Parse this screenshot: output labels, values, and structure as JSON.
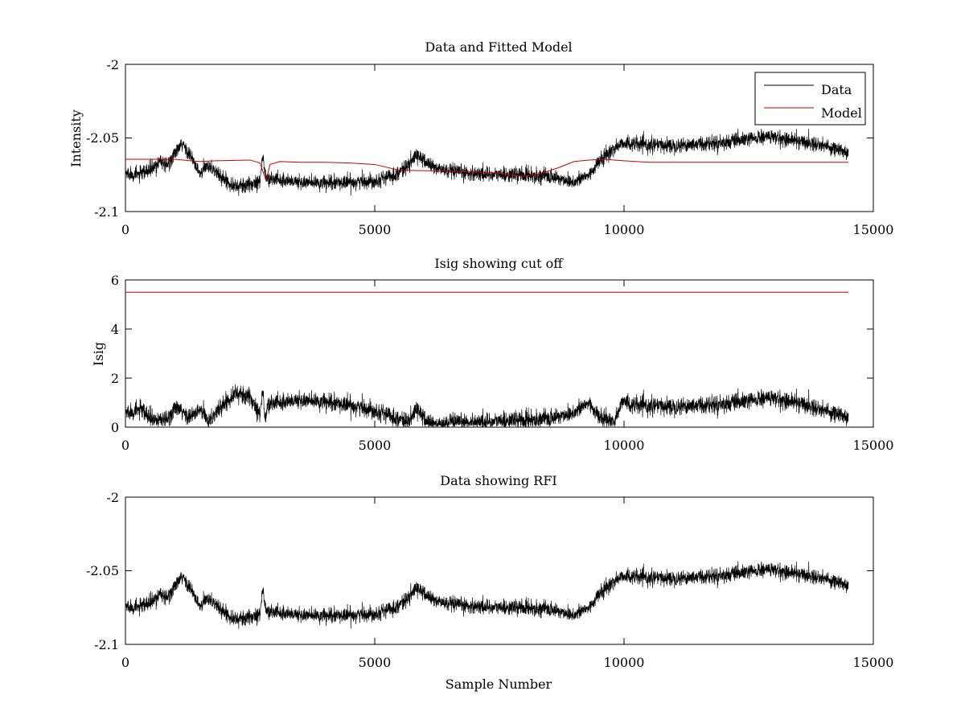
{
  "chart_data": [
    {
      "type": "line",
      "title": "Data and Fitted Model",
      "xlabel": "",
      "ylabel": "Intensity",
      "xlim": [
        0,
        15000
      ],
      "ylim": [
        -2.1,
        -2.0
      ],
      "xticks": [
        "0",
        "5000",
        "10000",
        "15000"
      ],
      "yticks": [
        "-2",
        "-2.05",
        "-2.1"
      ],
      "grid": false,
      "legend": {
        "position": "top-right",
        "entries": [
          "Data",
          "Model"
        ]
      },
      "series": [
        {
          "name": "Data",
          "color": "#000000",
          "noisy": true,
          "noise_amplitude": 0.005,
          "x": [
            0,
            300,
            600,
            700,
            800,
            1000,
            1150,
            1300,
            1500,
            1650,
            1750,
            1900,
            2200,
            2500,
            2700,
            2760,
            2800,
            2850,
            3000,
            3500,
            4000,
            4500,
            5000,
            5400,
            5700,
            5850,
            6000,
            6200,
            6500,
            7000,
            7500,
            8000,
            8500,
            9000,
            9300,
            9500,
            9800,
            10000,
            10100,
            10500,
            11000,
            11500,
            12000,
            12500,
            12900,
            13500,
            14000,
            14500
          ],
          "y": [
            -2.074,
            -2.075,
            -2.07,
            -2.064,
            -2.07,
            -2.06,
            -2.054,
            -2.062,
            -2.075,
            -2.068,
            -2.071,
            -2.076,
            -2.083,
            -2.082,
            -2.078,
            -2.062,
            -2.075,
            -2.078,
            -2.078,
            -2.08,
            -2.081,
            -2.08,
            -2.079,
            -2.075,
            -2.068,
            -2.061,
            -2.066,
            -2.07,
            -2.073,
            -2.074,
            -2.075,
            -2.075,
            -2.076,
            -2.08,
            -2.075,
            -2.066,
            -2.057,
            -2.053,
            -2.054,
            -2.055,
            -2.055,
            -2.054,
            -2.053,
            -2.051,
            -2.049,
            -2.052,
            -2.055,
            -2.06
          ]
        },
        {
          "name": "Model",
          "color": "#cc0000",
          "noisy": false,
          "x": [
            0,
            1000,
            1300,
            1500,
            1800,
            2500,
            2700,
            2780,
            2820,
            2900,
            3100,
            3500,
            4000,
            4500,
            5000,
            5500,
            6500,
            7500,
            8000,
            8300,
            8700,
            9000,
            9300,
            9600,
            10000,
            10500,
            12000,
            13500,
            14500
          ],
          "y": [
            -2.0645,
            -2.0645,
            -2.0655,
            -2.066,
            -2.0655,
            -2.065,
            -2.067,
            -2.075,
            -2.079,
            -2.068,
            -2.066,
            -2.0665,
            -2.0665,
            -2.067,
            -2.068,
            -2.072,
            -2.0725,
            -2.074,
            -2.076,
            -2.0745,
            -2.07,
            -2.066,
            -2.065,
            -2.0645,
            -2.0655,
            -2.0665,
            -2.0665,
            -2.0665,
            -2.0665
          ]
        }
      ]
    },
    {
      "type": "line",
      "title": "Isig showing cut off",
      "xlabel": "",
      "ylabel": "Isig",
      "xlim": [
        0,
        15000
      ],
      "ylim": [
        0,
        6
      ],
      "xticks": [
        "0",
        "5000",
        "10000",
        "15000"
      ],
      "yticks": [
        "6",
        "4",
        "2",
        "0"
      ],
      "grid": false,
      "series": [
        {
          "color": "#000000",
          "noisy": true,
          "noise_amplitude": 0.35,
          "abs": true,
          "x": [
            0,
            300,
            600,
            700,
            800,
            1000,
            1150,
            1300,
            1500,
            1650,
            1750,
            1900,
            2200,
            2500,
            2700,
            2760,
            2800,
            2850,
            3000,
            3500,
            4000,
            4500,
            5000,
            5400,
            5700,
            5850,
            6000,
            6200,
            6500,
            7000,
            7500,
            8000,
            8500,
            9000,
            9300,
            9500,
            9800,
            10000,
            10100,
            10500,
            11000,
            11500,
            12000,
            12500,
            12900,
            13500,
            14000,
            14500
          ],
          "y": [
            0.6,
            0.7,
            0.2,
            0.4,
            0.2,
            0.8,
            0.6,
            0.4,
            0.7,
            0.3,
            0.4,
            0.8,
            1.4,
            1.2,
            0.6,
            1.5,
            0.2,
            0.9,
            1.0,
            1.1,
            1.0,
            0.9,
            0.7,
            0.4,
            0.2,
            0.8,
            0.3,
            0.1,
            0.15,
            0.2,
            0.25,
            0.3,
            0.35,
            0.6,
            1.0,
            0.4,
            0.2,
            1.2,
            0.9,
            0.85,
            0.85,
            0.9,
            0.95,
            1.05,
            1.2,
            1.0,
            0.7,
            0.4
          ]
        },
        {
          "color": "#cc0000",
          "noisy": false,
          "x": [
            0,
            14500
          ],
          "y": [
            5.5,
            5.5
          ]
        }
      ]
    },
    {
      "type": "line",
      "title": "Data showing RFI",
      "xlabel": "Sample Number",
      "ylabel": "",
      "xlim": [
        0,
        15000
      ],
      "ylim": [
        -2.1,
        -2.0
      ],
      "xticks": [
        "0",
        "5000",
        "10000",
        "15000"
      ],
      "yticks": [
        "-2",
        "-2.05",
        "-2.1"
      ],
      "grid": false,
      "series": [
        {
          "color": "#000000",
          "noisy": true,
          "noise_amplitude": 0.005,
          "x": [
            0,
            300,
            600,
            700,
            800,
            1000,
            1150,
            1300,
            1500,
            1650,
            1750,
            1900,
            2200,
            2500,
            2700,
            2760,
            2800,
            2850,
            3000,
            3500,
            4000,
            4500,
            5000,
            5400,
            5700,
            5850,
            6000,
            6200,
            6500,
            7000,
            7500,
            8000,
            8500,
            9000,
            9300,
            9500,
            9800,
            10000,
            10100,
            10500,
            11000,
            11500,
            12000,
            12500,
            12900,
            13500,
            14000,
            14500
          ],
          "y": [
            -2.074,
            -2.075,
            -2.07,
            -2.064,
            -2.07,
            -2.06,
            -2.054,
            -2.062,
            -2.075,
            -2.068,
            -2.071,
            -2.076,
            -2.083,
            -2.082,
            -2.078,
            -2.062,
            -2.075,
            -2.078,
            -2.078,
            -2.08,
            -2.081,
            -2.08,
            -2.079,
            -2.075,
            -2.068,
            -2.061,
            -2.066,
            -2.07,
            -2.073,
            -2.074,
            -2.075,
            -2.075,
            -2.076,
            -2.08,
            -2.075,
            -2.066,
            -2.057,
            -2.053,
            -2.054,
            -2.055,
            -2.055,
            -2.054,
            -2.053,
            -2.051,
            -2.049,
            -2.052,
            -2.055,
            -2.06
          ]
        }
      ]
    }
  ]
}
